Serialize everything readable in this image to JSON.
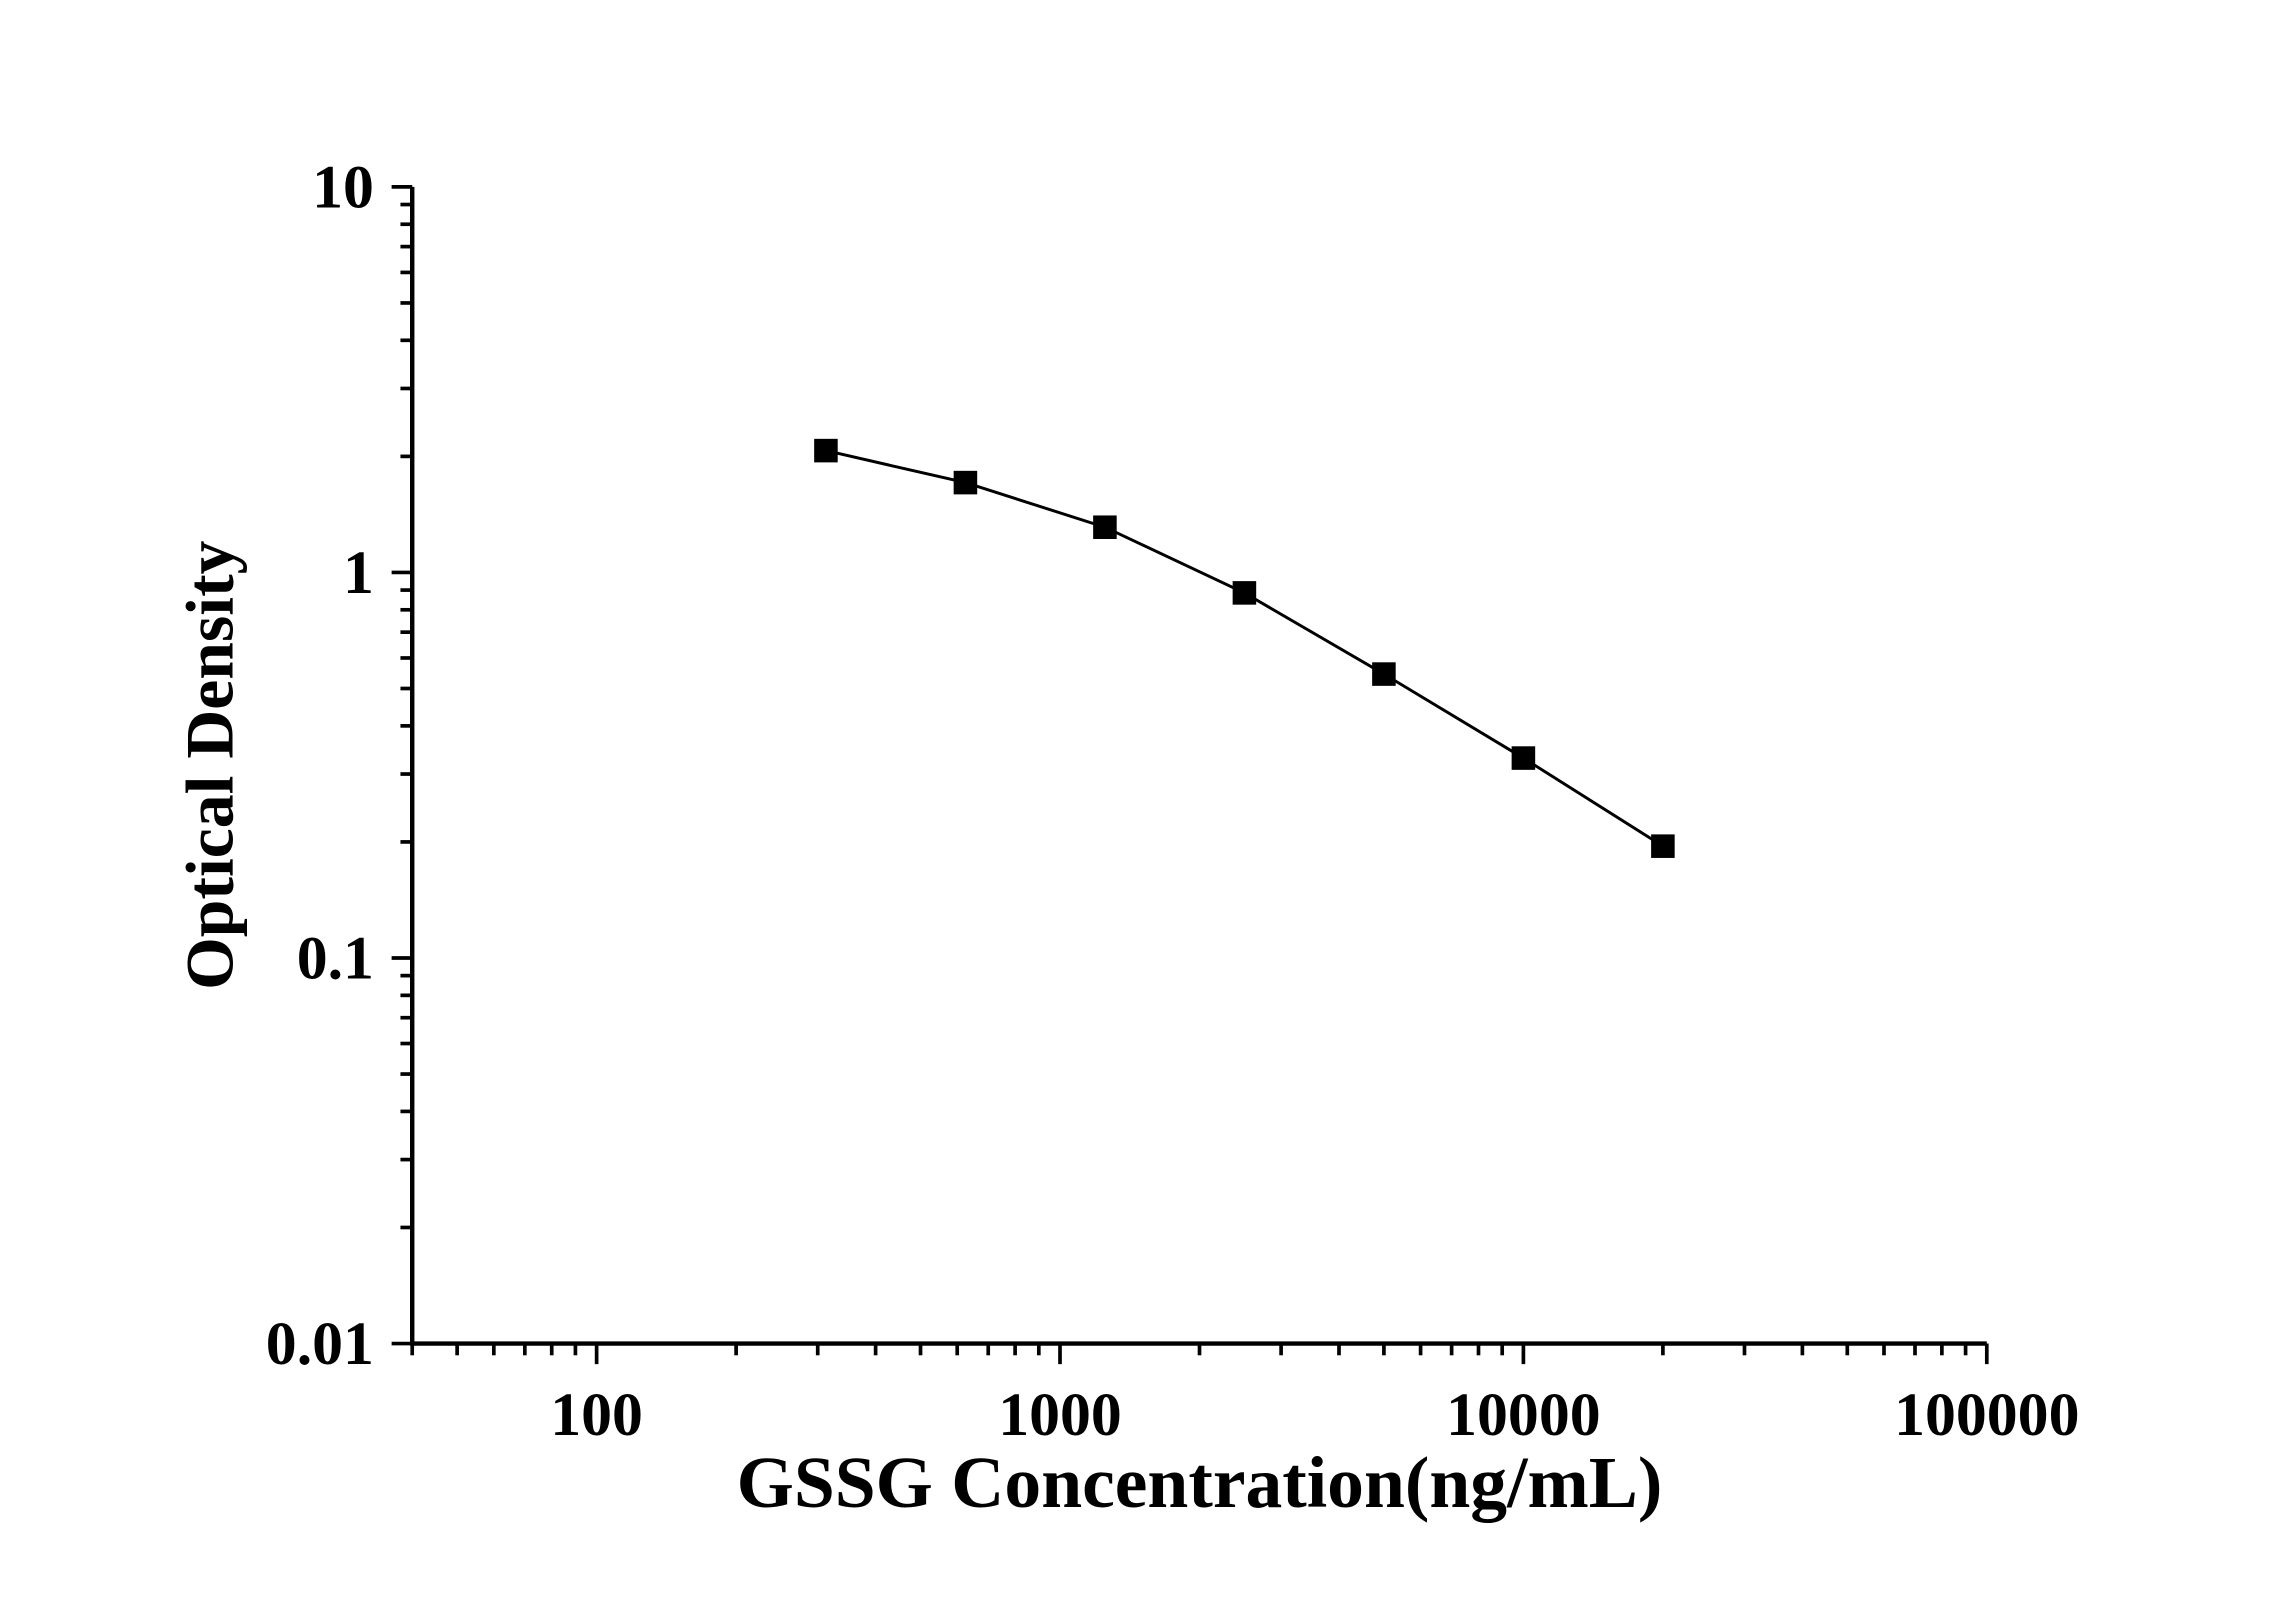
{
  "chart_data": {
    "type": "line",
    "title": "",
    "xlabel": "GSSG Concentration(ng/mL)",
    "ylabel": "Optical Density",
    "xscale": "log",
    "yscale": "log",
    "xlim": [
      40,
      100000
    ],
    "ylim": [
      0.01,
      10
    ],
    "xticks": [
      100,
      1000,
      10000,
      100000
    ],
    "xtick_labels": [
      "100",
      "1000",
      "10000",
      "100000"
    ],
    "yticks": [
      0.01,
      0.1,
      1,
      10
    ],
    "ytick_labels": [
      "0.01",
      "0.1",
      "1",
      "10"
    ],
    "grid": false,
    "marker": "square",
    "color": "#000000",
    "series": [
      {
        "x": [
          312.5,
          625,
          1250,
          2500,
          5000,
          10000,
          20000
        ],
        "y": [
          2.07,
          1.71,
          1.31,
          0.885,
          0.545,
          0.33,
          0.195
        ]
      }
    ]
  }
}
